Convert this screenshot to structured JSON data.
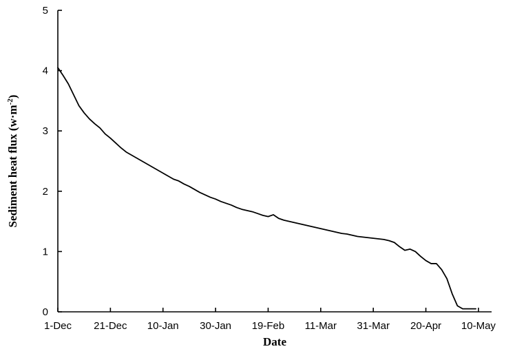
{
  "chart_data": {
    "type": "line",
    "xlabel": "Date",
    "ylabel": "Sediment heat flux (w·m⁻²)",
    "ylabel_parts": {
      "main": "Sediment heat flux (w·m",
      "superscript": "-2",
      "close": ")"
    },
    "x_tick_labels": [
      "1-Dec",
      "21-Dec",
      "10-Jan",
      "30-Jan",
      "19-Feb",
      "11-Mar",
      "31-Mar",
      "20-Apr",
      "10-May"
    ],
    "x_tick_day_offsets": [
      0,
      20,
      40,
      60,
      80,
      100,
      120,
      140,
      160
    ],
    "xlim_day_offsets": [
      0,
      165
    ],
    "y_ticks": [
      0,
      1,
      2,
      3,
      4,
      5
    ],
    "ylim": [
      0,
      5
    ],
    "grid": false,
    "legend": "none",
    "series": [
      {
        "color": "#000000",
        "x_day_offsets": [
          0,
          2,
          4,
          6,
          8,
          10,
          12,
          14,
          16,
          18,
          20,
          22,
          24,
          26,
          28,
          30,
          32,
          34,
          36,
          38,
          40,
          42,
          44,
          46,
          48,
          50,
          52,
          54,
          56,
          58,
          60,
          62,
          64,
          66,
          68,
          70,
          72,
          74,
          76,
          78,
          80,
          82,
          84,
          86,
          88,
          90,
          92,
          94,
          96,
          98,
          100,
          102,
          104,
          106,
          108,
          110,
          112,
          114,
          116,
          118,
          120,
          122,
          124,
          126,
          128,
          130,
          132,
          134,
          136,
          138,
          140,
          142,
          144,
          146,
          148,
          150,
          152,
          154,
          155,
          156,
          157,
          158,
          158.5,
          159
        ],
        "values": [
          4.05,
          3.92,
          3.78,
          3.6,
          3.42,
          3.3,
          3.2,
          3.12,
          3.05,
          2.95,
          2.88,
          2.8,
          2.72,
          2.65,
          2.6,
          2.55,
          2.5,
          2.45,
          2.4,
          2.35,
          2.3,
          2.25,
          2.2,
          2.17,
          2.12,
          2.08,
          2.03,
          1.98,
          1.94,
          1.9,
          1.87,
          1.83,
          1.8,
          1.77,
          1.73,
          1.7,
          1.68,
          1.66,
          1.63,
          1.6,
          1.58,
          1.61,
          1.55,
          1.52,
          1.5,
          1.48,
          1.46,
          1.44,
          1.42,
          1.4,
          1.38,
          1.36,
          1.34,
          1.32,
          1.3,
          1.29,
          1.27,
          1.25,
          1.24,
          1.23,
          1.22,
          1.21,
          1.2,
          1.18,
          1.15,
          1.08,
          1.02,
          1.04,
          1.0,
          0.92,
          0.85,
          0.8,
          0.8,
          0.7,
          0.55,
          0.3,
          0.1,
          0.05,
          0.05,
          0.05,
          0.05,
          0.05,
          0.05,
          0.05
        ]
      }
    ]
  }
}
